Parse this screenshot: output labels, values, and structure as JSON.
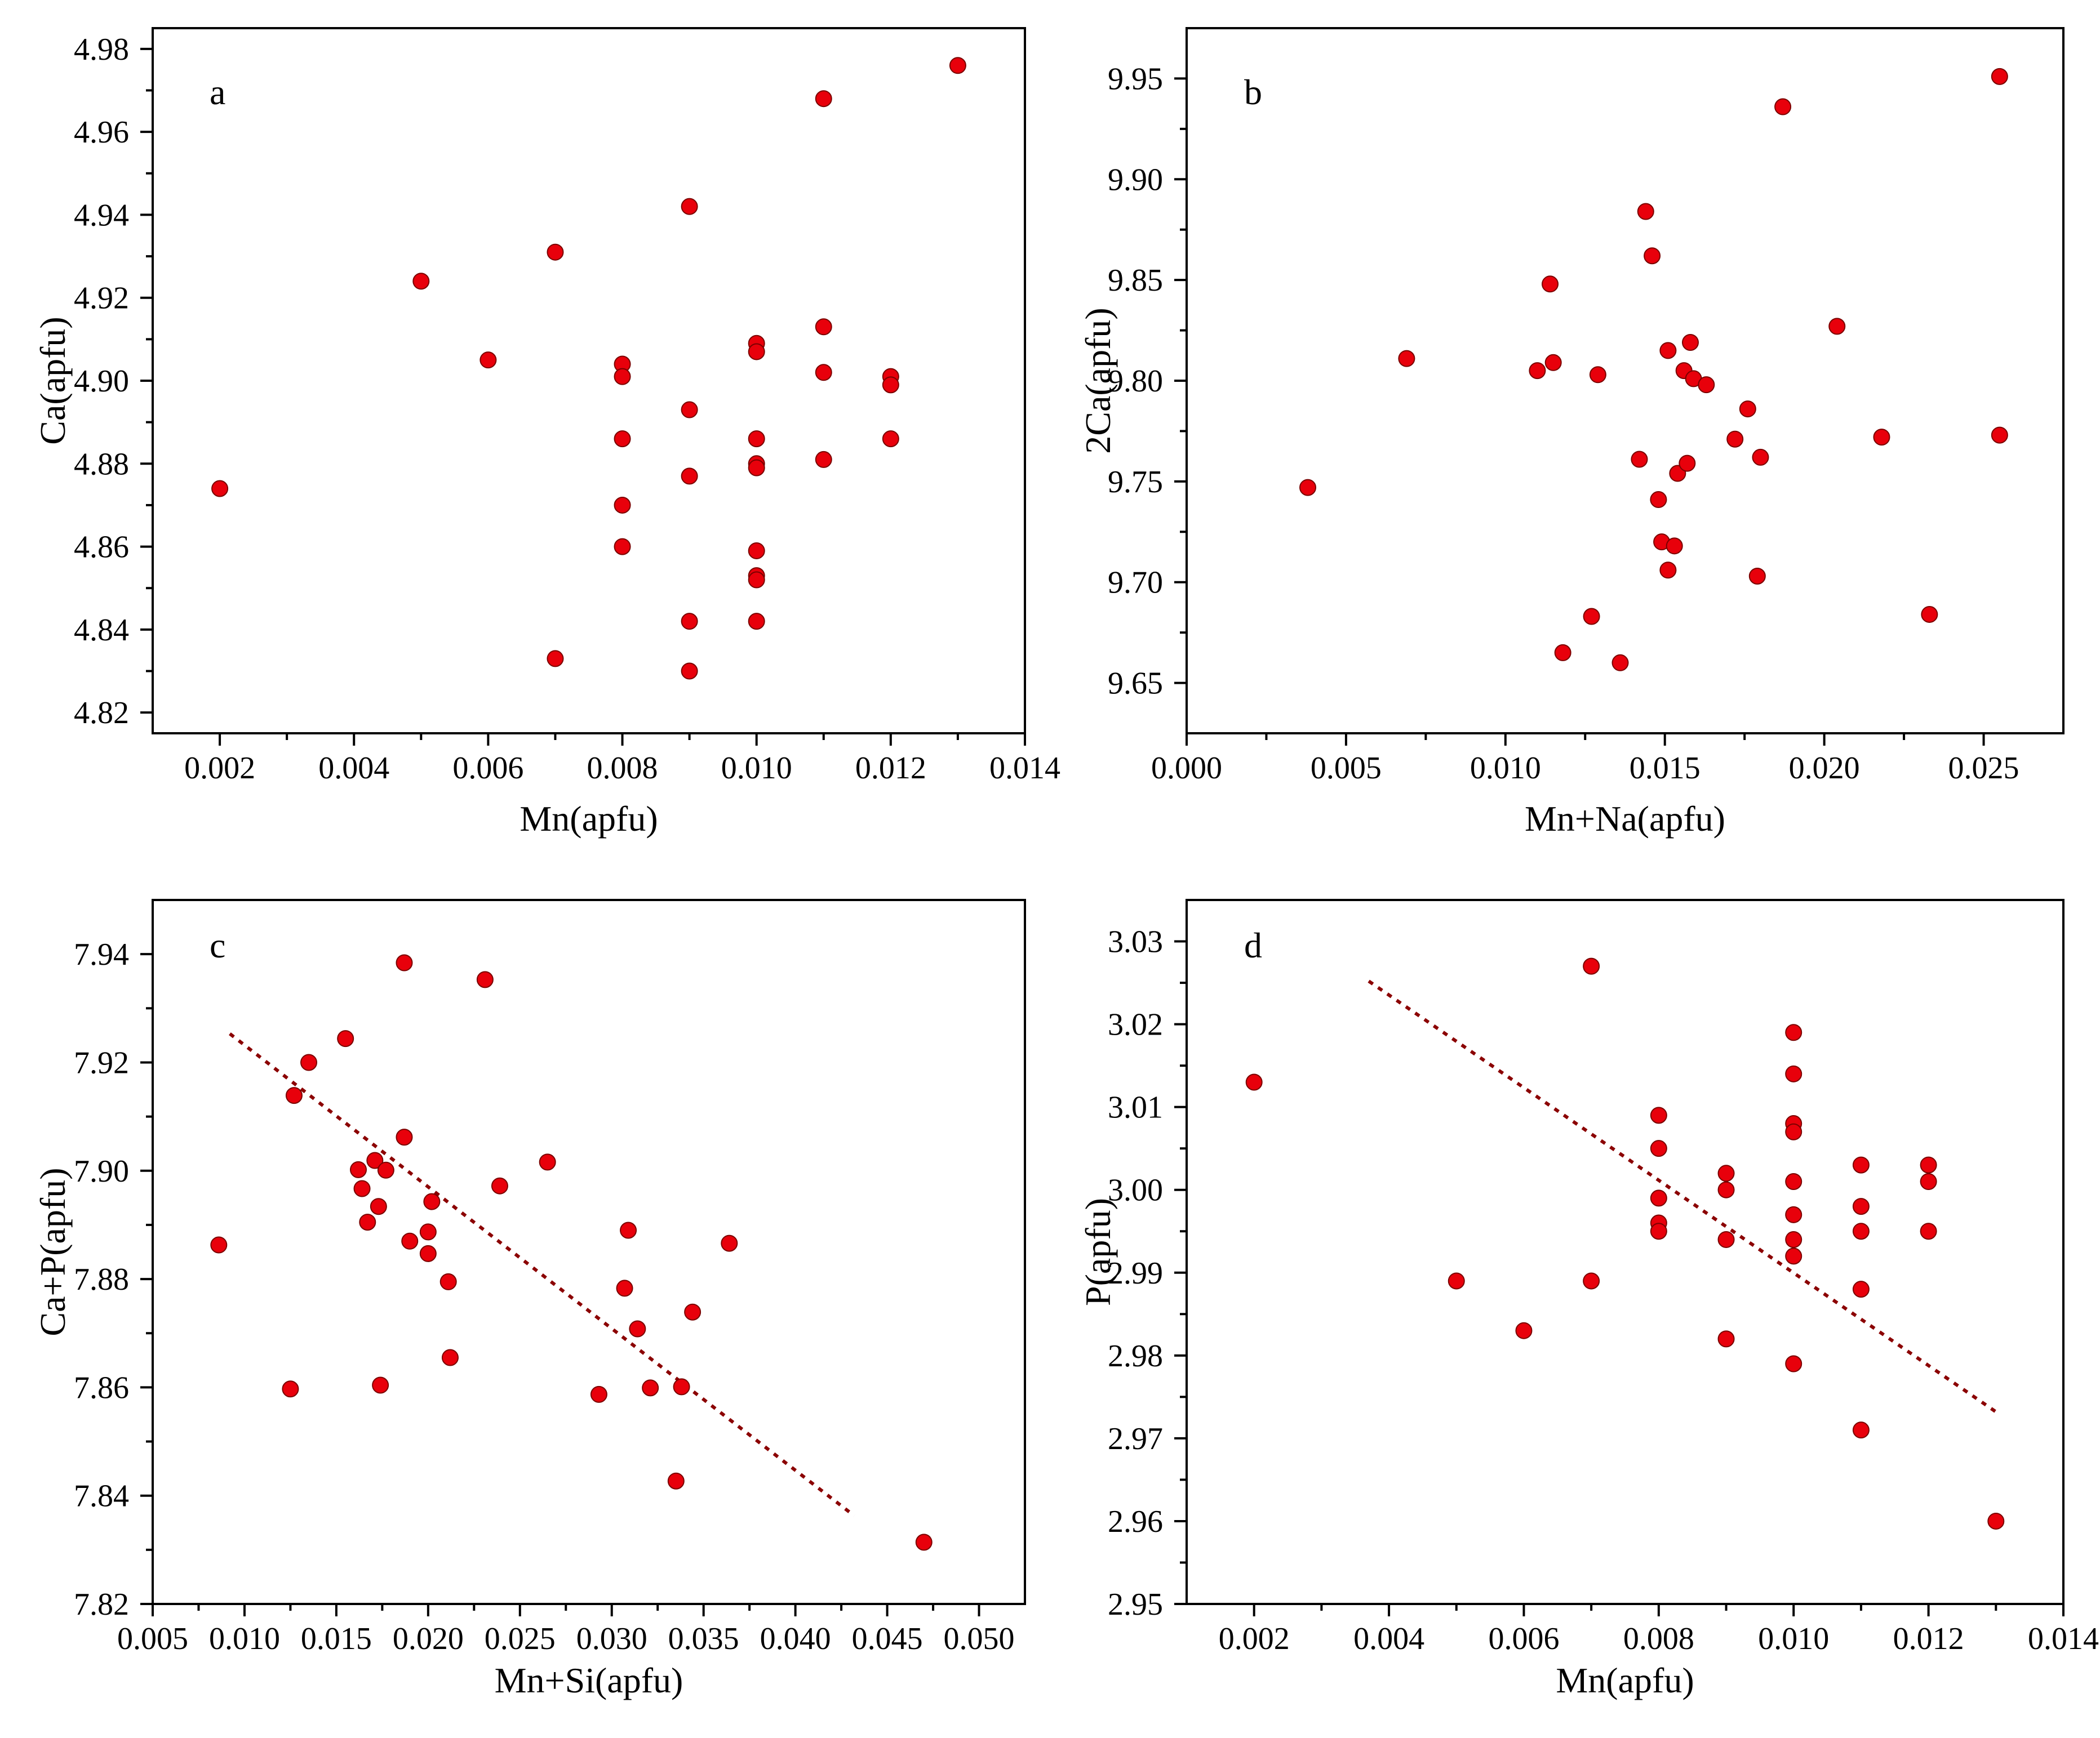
{
  "chart_data": [
    {
      "type": "scatter",
      "label": "a",
      "xlabel": "Mn(apfu)",
      "ylabel": "Ca(apfu)",
      "xlim": [
        0.001,
        0.014
      ],
      "ylim": [
        4.815,
        4.985
      ],
      "xticks": [
        "0.002",
        "0.004",
        "0.006",
        "0.008",
        "0.010",
        "0.012",
        "0.014"
      ],
      "yticks": [
        "4.82",
        "4.84",
        "4.86",
        "4.88",
        "4.90",
        "4.92",
        "4.94",
        "4.96",
        "4.98"
      ],
      "points": [
        [
          0.002,
          4.874
        ],
        [
          0.005,
          4.924
        ],
        [
          0.006,
          4.905
        ],
        [
          0.007,
          4.931
        ],
        [
          0.007,
          4.833
        ],
        [
          0.008,
          4.904
        ],
        [
          0.008,
          4.901
        ],
        [
          0.008,
          4.886
        ],
        [
          0.008,
          4.87
        ],
        [
          0.008,
          4.86
        ],
        [
          0.009,
          4.942
        ],
        [
          0.009,
          4.893
        ],
        [
          0.009,
          4.877
        ],
        [
          0.009,
          4.842
        ],
        [
          0.009,
          4.83
        ],
        [
          0.01,
          4.909
        ],
        [
          0.01,
          4.907
        ],
        [
          0.01,
          4.886
        ],
        [
          0.01,
          4.88
        ],
        [
          0.01,
          4.879
        ],
        [
          0.01,
          4.859
        ],
        [
          0.01,
          4.853
        ],
        [
          0.01,
          4.852
        ],
        [
          0.01,
          4.842
        ],
        [
          0.011,
          4.968
        ],
        [
          0.011,
          4.913
        ],
        [
          0.011,
          4.902
        ],
        [
          0.011,
          4.881
        ],
        [
          0.012,
          4.901
        ],
        [
          0.012,
          4.899
        ],
        [
          0.012,
          4.886
        ],
        [
          0.013,
          4.976
        ]
      ],
      "trendline": null
    },
    {
      "type": "scatter",
      "label": "b",
      "xlabel": "Mn+Na(apfu)",
      "ylabel": "2Ca(apfu)",
      "xlim": [
        0.0,
        0.0275
      ],
      "ylim": [
        9.625,
        9.975
      ],
      "xticks": [
        "0.000",
        "0.005",
        "0.010",
        "0.015",
        "0.020",
        "0.025"
      ],
      "yticks": [
        "9.65",
        "9.70",
        "9.75",
        "9.80",
        "9.85",
        "9.90",
        "9.95"
      ],
      "points": [
        [
          0.0038,
          9.747
        ],
        [
          0.0069,
          9.811
        ],
        [
          0.011,
          9.805
        ],
        [
          0.0114,
          9.848
        ],
        [
          0.0115,
          9.809
        ],
        [
          0.0118,
          9.665
        ],
        [
          0.0127,
          9.683
        ],
        [
          0.0129,
          9.803
        ],
        [
          0.0136,
          9.66
        ],
        [
          0.0142,
          9.761
        ],
        [
          0.0144,
          9.884
        ],
        [
          0.0146,
          9.862
        ],
        [
          0.0148,
          9.741
        ],
        [
          0.0149,
          9.72
        ],
        [
          0.0151,
          9.706
        ],
        [
          0.0151,
          9.815
        ],
        [
          0.0153,
          9.718
        ],
        [
          0.0154,
          9.754
        ],
        [
          0.0156,
          9.805
        ],
        [
          0.0157,
          9.759
        ],
        [
          0.0158,
          9.819
        ],
        [
          0.0159,
          9.801
        ],
        [
          0.0163,
          9.798
        ],
        [
          0.0172,
          9.771
        ],
        [
          0.0176,
          9.786
        ],
        [
          0.0179,
          9.703
        ],
        [
          0.018,
          9.762
        ],
        [
          0.0187,
          9.936
        ],
        [
          0.0204,
          9.827
        ],
        [
          0.0218,
          9.772
        ],
        [
          0.0233,
          9.684
        ],
        [
          0.0255,
          9.951
        ],
        [
          0.0255,
          9.773
        ]
      ],
      "trendline": null
    },
    {
      "type": "scatter",
      "label": "c",
      "xlabel": "Mn+Si(apfu)",
      "ylabel": "Ca+P(apfu)",
      "xlim": [
        0.005,
        0.0525
      ],
      "ylim": [
        7.82,
        7.95
      ],
      "xticks": [
        "0.005",
        "0.010",
        "0.015",
        "0.020",
        "0.025",
        "0.030",
        "0.035",
        "0.040",
        "0.045",
        "0.050"
      ],
      "yticks": [
        "7.82",
        "7.84",
        "7.86",
        "7.88",
        "7.90",
        "7.92",
        "7.94"
      ],
      "points": [
        [
          0.0086,
          7.8863
        ],
        [
          0.0125,
          7.8597
        ],
        [
          0.0127,
          7.9139
        ],
        [
          0.0135,
          7.92
        ],
        [
          0.0155,
          7.9244
        ],
        [
          0.0162,
          7.9002
        ],
        [
          0.0164,
          7.8967
        ],
        [
          0.0167,
          7.8905
        ],
        [
          0.0171,
          7.9019
        ],
        [
          0.0173,
          7.8934
        ],
        [
          0.0174,
          7.8604
        ],
        [
          0.0177,
          7.9001
        ],
        [
          0.0187,
          7.9384
        ],
        [
          0.0187,
          7.9062
        ],
        [
          0.019,
          7.887
        ],
        [
          0.02,
          7.8847
        ],
        [
          0.02,
          7.8887
        ],
        [
          0.0202,
          7.8943
        ],
        [
          0.0211,
          7.8795
        ],
        [
          0.0212,
          7.8655
        ],
        [
          0.0231,
          7.9353
        ],
        [
          0.0239,
          7.8972
        ],
        [
          0.0265,
          7.9016
        ],
        [
          0.0293,
          7.8587
        ],
        [
          0.0307,
          7.8783
        ],
        [
          0.0309,
          7.889
        ],
        [
          0.0314,
          7.8708
        ],
        [
          0.0321,
          7.8599
        ],
        [
          0.0335,
          7.8427
        ],
        [
          0.0338,
          7.8601
        ],
        [
          0.0344,
          7.8739
        ],
        [
          0.0364,
          7.8866
        ],
        [
          0.047,
          7.8314
        ]
      ],
      "trendline": {
        "x": [
          0.0092,
          0.0432
        ],
        "y": [
          7.9253,
          7.8363
        ]
      }
    },
    {
      "type": "scatter",
      "label": "d",
      "xlabel": "Mn(apfu)",
      "ylabel": "P(apfu)",
      "xlim": [
        0.001,
        0.014
      ],
      "ylim": [
        2.95,
        3.035
      ],
      "xticks": [
        "0.002",
        "0.004",
        "0.006",
        "0.008",
        "0.010",
        "0.012",
        "0.014"
      ],
      "yticks": [
        "2.95",
        "2.96",
        "2.97",
        "2.98",
        "2.99",
        "3.00",
        "3.01",
        "3.02",
        "3.03"
      ],
      "points": [
        [
          0.002,
          3.013
        ],
        [
          0.005,
          2.989
        ],
        [
          0.006,
          2.983
        ],
        [
          0.007,
          3.027
        ],
        [
          0.007,
          2.989
        ],
        [
          0.008,
          3.009
        ],
        [
          0.008,
          3.005
        ],
        [
          0.008,
          2.999
        ],
        [
          0.008,
          2.996
        ],
        [
          0.008,
          2.995
        ],
        [
          0.009,
          3.002
        ],
        [
          0.009,
          3.0
        ],
        [
          0.009,
          2.994
        ],
        [
          0.009,
          2.982
        ],
        [
          0.01,
          3.019
        ],
        [
          0.01,
          3.014
        ],
        [
          0.01,
          3.008
        ],
        [
          0.01,
          3.007
        ],
        [
          0.01,
          3.001
        ],
        [
          0.01,
          2.997
        ],
        [
          0.01,
          2.994
        ],
        [
          0.01,
          2.992
        ],
        [
          0.01,
          2.979
        ],
        [
          0.011,
          3.003
        ],
        [
          0.011,
          2.998
        ],
        [
          0.011,
          2.995
        ],
        [
          0.011,
          2.988
        ],
        [
          0.011,
          2.971
        ],
        [
          0.012,
          3.003
        ],
        [
          0.012,
          3.001
        ],
        [
          0.012,
          2.995
        ],
        [
          0.013,
          2.96
        ]
      ],
      "trendline": {
        "x": [
          0.0037,
          0.013
        ],
        "y": [
          3.0252,
          2.9732
        ]
      }
    }
  ]
}
